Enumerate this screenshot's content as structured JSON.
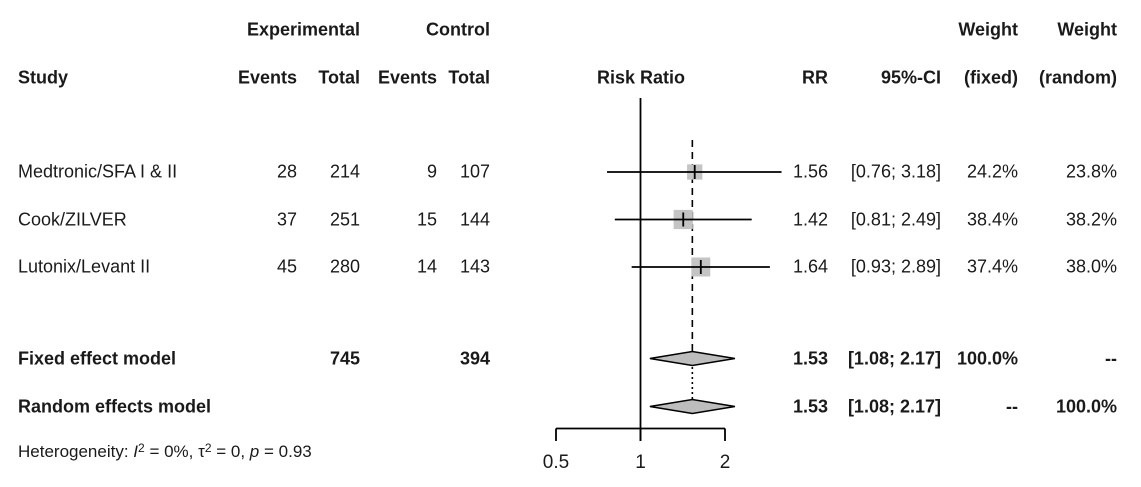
{
  "app": {
    "background": "#ffffff",
    "text_color": "#1a1a1a",
    "square_color": "#c4c4c4",
    "diamond_fill": "#bdbdbd",
    "line_color": "#000000"
  },
  "headers": {
    "group_experimental": "Experimental",
    "group_control": "Control",
    "weight_fixed_top": "Weight",
    "weight_random_top": "Weight",
    "study": "Study",
    "events_exp": "Events",
    "total_exp": "Total",
    "events_ctrl": "Events",
    "total_ctrl": "Total",
    "risk_ratio": "Risk Ratio",
    "rr": "RR",
    "ci": "95%-CI",
    "weight_fixed_sub": "(fixed)",
    "weight_random_sub": "(random)"
  },
  "chart_data": {
    "type": "forest",
    "effect_measure": "Risk Ratio",
    "x_scale": "log",
    "ref_line": 1,
    "pooled_estimate": 1.53,
    "axis_ticks": [
      {
        "value": 0.5,
        "label": "0.5"
      },
      {
        "value": 1,
        "label": "1"
      },
      {
        "value": 2,
        "label": "2"
      }
    ],
    "studies": [
      {
        "name": "Medtronic/SFA I & II",
        "events_exp": 28,
        "total_exp": 214,
        "events_ctrl": 9,
        "total_ctrl": 107,
        "rr": 1.56,
        "ci_lo": 0.76,
        "ci_hi": 3.18,
        "rr_text": "1.56",
        "ci_text": "[0.76; 3.18]",
        "weight_fixed": "24.2%",
        "weight_random": "23.8%"
      },
      {
        "name": "Cook/ZILVER",
        "events_exp": 37,
        "total_exp": 251,
        "events_ctrl": 15,
        "total_ctrl": 144,
        "rr": 1.42,
        "ci_lo": 0.81,
        "ci_hi": 2.49,
        "rr_text": "1.42",
        "ci_text": "[0.81; 2.49]",
        "weight_fixed": "38.4%",
        "weight_random": "38.2%"
      },
      {
        "name": "Lutonix/Levant II",
        "events_exp": 45,
        "total_exp": 280,
        "events_ctrl": 14,
        "total_ctrl": 143,
        "rr": 1.64,
        "ci_lo": 0.93,
        "ci_hi": 2.89,
        "rr_text": "1.64",
        "ci_text": "[0.93; 2.89]",
        "weight_fixed": "37.4%",
        "weight_random": "38.0%"
      }
    ],
    "summaries": [
      {
        "name": "Fixed effect model",
        "total_exp": 745,
        "total_ctrl": 394,
        "rr": 1.53,
        "ci_lo": 1.08,
        "ci_hi": 2.17,
        "rr_text": "1.53",
        "ci_text": "[1.08; 2.17]",
        "weight_fixed": "100.0%",
        "weight_random": "--"
      },
      {
        "name": "Random effects model",
        "rr": 1.53,
        "ci_lo": 1.08,
        "ci_hi": 2.17,
        "rr_text": "1.53",
        "ci_text": "[1.08; 2.17]",
        "weight_fixed": "--",
        "weight_random": "100.0%"
      }
    ],
    "heterogeneity_segments": [
      {
        "text": "Heterogeneity: "
      },
      {
        "text": "I",
        "italic": true
      },
      {
        "text": "2",
        "sup": true
      },
      {
        "text": " = 0%, "
      },
      {
        "text": "τ"
      },
      {
        "text": "2",
        "sup": true
      },
      {
        "text": " = 0, "
      },
      {
        "text": "p",
        "italic": true
      },
      {
        "text": " = 0.93"
      }
    ]
  }
}
